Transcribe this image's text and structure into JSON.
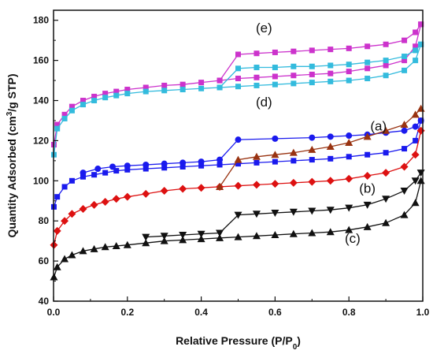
{
  "chart_data": {
    "type": "scatter",
    "xlabel": "Relative Pressure (P/P",
    "xlabel_sub": "0",
    "xlabel_end": ")",
    "ylabel": "Quantity Adsorbed (cm",
    "ylabel_sup": "3",
    "ylabel_end": "/g STP)",
    "xlim": [
      0.0,
      1.0
    ],
    "ylim": [
      40,
      185
    ],
    "x_ticks": [
      "0.0",
      "0.2",
      "0.4",
      "0.6",
      "0.8",
      "1.0"
    ],
    "y_ticks": [
      "40",
      "60",
      "80",
      "100",
      "120",
      "140",
      "160",
      "180"
    ],
    "annotations": [
      {
        "text": "(e)",
        "x": 0.57,
        "y": 174
      },
      {
        "text": "(d)",
        "x": 0.57,
        "y": 137
      },
      {
        "text": "(a)",
        "x": 0.88,
        "y": 125
      },
      {
        "text": "(b)",
        "x": 0.85,
        "y": 94
      },
      {
        "text": "(c)",
        "x": 0.81,
        "y": 69
      }
    ],
    "series": [
      {
        "name": "(e)",
        "branch": "adsorption",
        "color": "#cc33cc",
        "marker": "square",
        "filled": true,
        "x": [
          0.001,
          0.01,
          0.03,
          0.05,
          0.08,
          0.11,
          0.14,
          0.17,
          0.2,
          0.25,
          0.3,
          0.35,
          0.4,
          0.45,
          0.5,
          0.55,
          0.6,
          0.65,
          0.7,
          0.75,
          0.8,
          0.85,
          0.9,
          0.95,
          0.98,
          0.995
        ],
        "y": [
          118,
          128,
          133,
          137,
          140,
          142,
          143.5,
          144.5,
          145.5,
          146.5,
          147.5,
          148,
          149,
          150,
          151,
          151.5,
          152,
          152.5,
          153,
          153.5,
          154.5,
          156,
          157.5,
          160,
          167,
          178
        ]
      },
      {
        "name": "(e)",
        "branch": "desorption",
        "color": "#cc33cc",
        "marker": "square",
        "filled": true,
        "x": [
          0.995,
          0.98,
          0.95,
          0.9,
          0.85,
          0.8,
          0.75,
          0.7,
          0.65,
          0.6,
          0.55,
          0.5,
          0.45
        ],
        "y": [
          178,
          174,
          170,
          168,
          167,
          166,
          165.5,
          165,
          164.5,
          164,
          163.5,
          163,
          150
        ]
      },
      {
        "name": "(d)",
        "branch": "adsorption",
        "color": "#33bbdd",
        "marker": "square",
        "filled": true,
        "x": [
          0.001,
          0.01,
          0.03,
          0.05,
          0.08,
          0.11,
          0.14,
          0.17,
          0.2,
          0.25,
          0.3,
          0.35,
          0.4,
          0.45,
          0.5,
          0.55,
          0.6,
          0.65,
          0.7,
          0.75,
          0.8,
          0.85,
          0.9,
          0.95,
          0.98,
          0.995
        ],
        "y": [
          113,
          126,
          131,
          135,
          138,
          140,
          141.5,
          142.5,
          143.5,
          144.5,
          145,
          145.5,
          146,
          146.5,
          147,
          147.5,
          148,
          148.5,
          149,
          149.5,
          150,
          151,
          152.5,
          155,
          160,
          168
        ]
      },
      {
        "name": "(d)",
        "branch": "desorption",
        "color": "#33bbdd",
        "marker": "square",
        "filled": true,
        "x": [
          0.995,
          0.98,
          0.95,
          0.9,
          0.85,
          0.8,
          0.75,
          0.7,
          0.65,
          0.6,
          0.55,
          0.5,
          0.45
        ],
        "y": [
          168,
          165,
          162,
          160,
          159,
          158,
          157.5,
          157,
          157,
          156.5,
          156.5,
          156,
          146.5
        ]
      },
      {
        "name": "(a)",
        "branch": "adsorption",
        "color": "#1a1aee",
        "marker": "square",
        "filled": true,
        "x": [
          0.001,
          0.01,
          0.03,
          0.05,
          0.08,
          0.11,
          0.14,
          0.17,
          0.2,
          0.25,
          0.3,
          0.35,
          0.4,
          0.45,
          0.5,
          0.55,
          0.6,
          0.65,
          0.7,
          0.75,
          0.8,
          0.85,
          0.9,
          0.95,
          0.98,
          0.995
        ],
        "y": [
          87,
          92,
          97,
          100,
          102,
          103,
          104,
          105,
          105.5,
          106,
          106.5,
          107,
          107.5,
          108,
          108.5,
          109,
          109.5,
          110,
          110.5,
          111,
          112,
          113,
          114,
          116,
          120,
          130
        ]
      },
      {
        "name": "(a)",
        "branch": "desorption",
        "color": "#1a1aee",
        "marker": "circle",
        "filled": true,
        "x": [
          0.995,
          0.98,
          0.95,
          0.9,
          0.85,
          0.8,
          0.75,
          0.7,
          0.6,
          0.5,
          0.45,
          0.4,
          0.35,
          0.3,
          0.25,
          0.2,
          0.16,
          0.12,
          0.08
        ],
        "y": [
          130,
          127,
          125,
          124,
          123,
          122.5,
          122,
          121.5,
          121,
          120.5,
          110.5,
          109.5,
          109,
          108.5,
          108,
          107.5,
          107,
          106,
          104
        ]
      },
      {
        "name": "(b)",
        "branch": "adsorption",
        "color": "#dd1111",
        "marker": "diamond",
        "filled": true,
        "x": [
          0.001,
          0.01,
          0.03,
          0.05,
          0.08,
          0.11,
          0.14,
          0.17,
          0.2,
          0.25,
          0.3,
          0.35,
          0.4,
          0.45,
          0.5,
          0.55,
          0.6,
          0.65,
          0.7,
          0.75,
          0.8,
          0.85,
          0.9,
          0.95,
          0.98,
          0.995
        ],
        "y": [
          68,
          75,
          80,
          83.5,
          86,
          88,
          89.5,
          91,
          92,
          93.5,
          95,
          96,
          96.5,
          97,
          97.5,
          98,
          98.5,
          99,
          99.5,
          100,
          101,
          102.5,
          104,
          107,
          113,
          125
        ]
      },
      {
        "name": "(b)",
        "branch": "desorption",
        "color": "#993311",
        "marker": "triangle",
        "filled": true,
        "x": [
          0.995,
          0.98,
          0.95,
          0.9,
          0.85,
          0.8,
          0.75,
          0.7,
          0.65,
          0.6,
          0.55,
          0.5,
          0.45
        ],
        "y": [
          136,
          133,
          128,
          125,
          122,
          119,
          117,
          115.5,
          114,
          113,
          112,
          110.5,
          97
        ]
      },
      {
        "name": "(c)",
        "branch": "adsorption",
        "color": "#111111",
        "marker": "triangle",
        "filled": true,
        "x": [
          0.001,
          0.01,
          0.03,
          0.05,
          0.08,
          0.11,
          0.14,
          0.17,
          0.2,
          0.25,
          0.3,
          0.35,
          0.4,
          0.45,
          0.5,
          0.55,
          0.6,
          0.65,
          0.7,
          0.75,
          0.8,
          0.85,
          0.9,
          0.95,
          0.98,
          0.995
        ],
        "y": [
          52,
          57,
          61,
          63,
          65,
          66,
          67,
          67.5,
          68,
          69,
          70,
          70.5,
          71,
          71.5,
          72,
          72.5,
          73,
          73.5,
          74,
          74.5,
          75.5,
          77,
          79,
          83,
          89,
          100
        ]
      },
      {
        "name": "(c)",
        "branch": "desorption",
        "color": "#111111",
        "marker": "triangle-down",
        "filled": true,
        "x": [
          0.995,
          0.98,
          0.95,
          0.9,
          0.85,
          0.8,
          0.75,
          0.7,
          0.65,
          0.6,
          0.55,
          0.5,
          0.45,
          0.4,
          0.35,
          0.3,
          0.25
        ],
        "y": [
          104,
          100,
          95,
          91,
          88,
          86.5,
          85.5,
          85,
          84.5,
          84,
          83.5,
          83,
          74,
          73.5,
          73,
          72.5,
          72
        ]
      }
    ]
  }
}
